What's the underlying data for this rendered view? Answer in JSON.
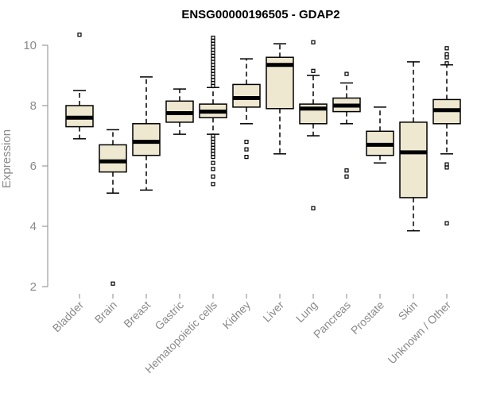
{
  "chart_data": {
    "type": "boxplot",
    "title": "ENSG00000196505 - GDAP2",
    "xlabel": "",
    "ylabel": "Expression",
    "ylim": [
      2,
      10.4
    ],
    "yticks": [
      2,
      4,
      6,
      8,
      10
    ],
    "box_color": "#efe8d0",
    "categories": [
      "Bladder",
      "Brain",
      "Breast",
      "Gastric",
      "Hematopoietic cells",
      "Kidney",
      "Liver",
      "Lung",
      "Pancreas",
      "Prostate",
      "Skin",
      "Unknown / Other"
    ],
    "series": [
      {
        "name": "Bladder",
        "min": 6.9,
        "q1": 7.3,
        "median": 7.6,
        "q3": 8.0,
        "max": 8.5,
        "outliers": [
          10.35
        ]
      },
      {
        "name": "Brain",
        "min": 5.1,
        "q1": 5.8,
        "median": 6.15,
        "q3": 6.7,
        "max": 7.2,
        "outliers": [
          2.1
        ]
      },
      {
        "name": "Breast",
        "min": 5.2,
        "q1": 6.35,
        "median": 6.8,
        "q3": 7.4,
        "max": 8.95,
        "outliers": []
      },
      {
        "name": "Gastric",
        "min": 7.05,
        "q1": 7.45,
        "median": 7.75,
        "q3": 8.15,
        "max": 8.55,
        "outliers": []
      },
      {
        "name": "Hematopoietic cells",
        "min": 7.05,
        "q1": 7.6,
        "median": 7.8,
        "q3": 8.05,
        "max": 8.6,
        "outliers": [
          10.25,
          10.15,
          10.05,
          9.95,
          9.85,
          9.75,
          9.65,
          9.55,
          9.45,
          9.35,
          9.25,
          9.15,
          9.05,
          8.95,
          8.85,
          8.75,
          8.65,
          7.0,
          6.9,
          6.8,
          6.7,
          6.6,
          6.5,
          6.4,
          6.3,
          6.1,
          5.9,
          5.65,
          5.4
        ]
      },
      {
        "name": "Kidney",
        "min": 7.4,
        "q1": 7.95,
        "median": 8.25,
        "q3": 8.7,
        "max": 9.55,
        "outliers": [
          6.8,
          6.55,
          6.3
        ]
      },
      {
        "name": "Liver",
        "min": 6.4,
        "q1": 7.9,
        "median": 9.35,
        "q3": 9.6,
        "max": 10.05,
        "outliers": []
      },
      {
        "name": "Lung",
        "min": 7.0,
        "q1": 7.4,
        "median": 7.9,
        "q3": 8.05,
        "max": 9.0,
        "outliers": [
          10.1,
          9.15,
          4.6
        ]
      },
      {
        "name": "Pancreas",
        "min": 7.4,
        "q1": 7.8,
        "median": 8.0,
        "q3": 8.25,
        "max": 8.75,
        "outliers": [
          9.05,
          5.85,
          5.65
        ]
      },
      {
        "name": "Prostate",
        "min": 6.1,
        "q1": 6.35,
        "median": 6.7,
        "q3": 7.15,
        "max": 7.95,
        "outliers": []
      },
      {
        "name": "Skin",
        "min": 3.85,
        "q1": 4.95,
        "median": 6.45,
        "q3": 7.45,
        "max": 9.45,
        "outliers": []
      },
      {
        "name": "Unknown / Other",
        "min": 6.4,
        "q1": 7.4,
        "median": 7.85,
        "q3": 8.2,
        "max": 9.35,
        "outliers": [
          9.9,
          9.7,
          9.6,
          9.4,
          6.05,
          5.95,
          4.1
        ]
      }
    ]
  }
}
